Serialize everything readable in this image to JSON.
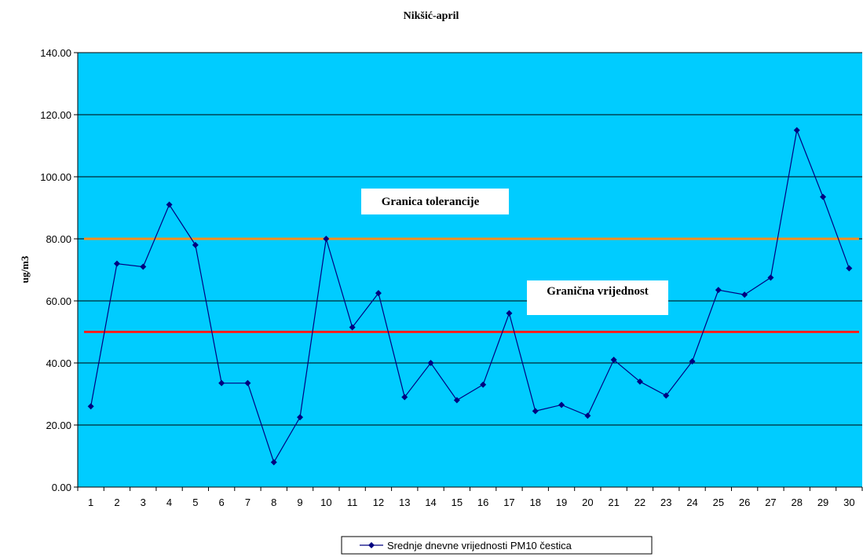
{
  "chart_data": {
    "type": "line",
    "title": "Nikšić-april",
    "xlabel": "",
    "ylabel": "ug/m3",
    "ylim": [
      0,
      140
    ],
    "y_ticks": [
      "0.00",
      "20.00",
      "40.00",
      "60.00",
      "80.00",
      "100.00",
      "120.00",
      "140.00"
    ],
    "categories": [
      "1",
      "2",
      "3",
      "4",
      "5",
      "6",
      "7",
      "8",
      "9",
      "10",
      "11",
      "12",
      "13",
      "14",
      "15",
      "16",
      "17",
      "18",
      "19",
      "20",
      "21",
      "22",
      "23",
      "24",
      "25",
      "26",
      "27",
      "28",
      "29",
      "30"
    ],
    "series": [
      {
        "name": "Srednje dnevne vrijednosti PM10 čestica",
        "color": "#000080",
        "values": [
          26,
          72,
          71,
          91,
          78,
          33.5,
          33.5,
          8,
          22.5,
          80,
          51.5,
          62.5,
          29,
          40,
          28,
          33,
          56,
          24.5,
          26.5,
          23,
          41,
          34,
          29.5,
          40.5,
          63.5,
          62,
          67.5,
          115,
          93.5,
          70.5
        ]
      }
    ],
    "reference_lines": [
      {
        "label": "Granica tolerancije",
        "value": 80,
        "color": "#ff8c1a"
      },
      {
        "label": "Granična vrijednost",
        "value": 50,
        "color": "#ff2020"
      }
    ],
    "plot_background": "#00ccff",
    "grid": true,
    "legend": "bottom"
  }
}
